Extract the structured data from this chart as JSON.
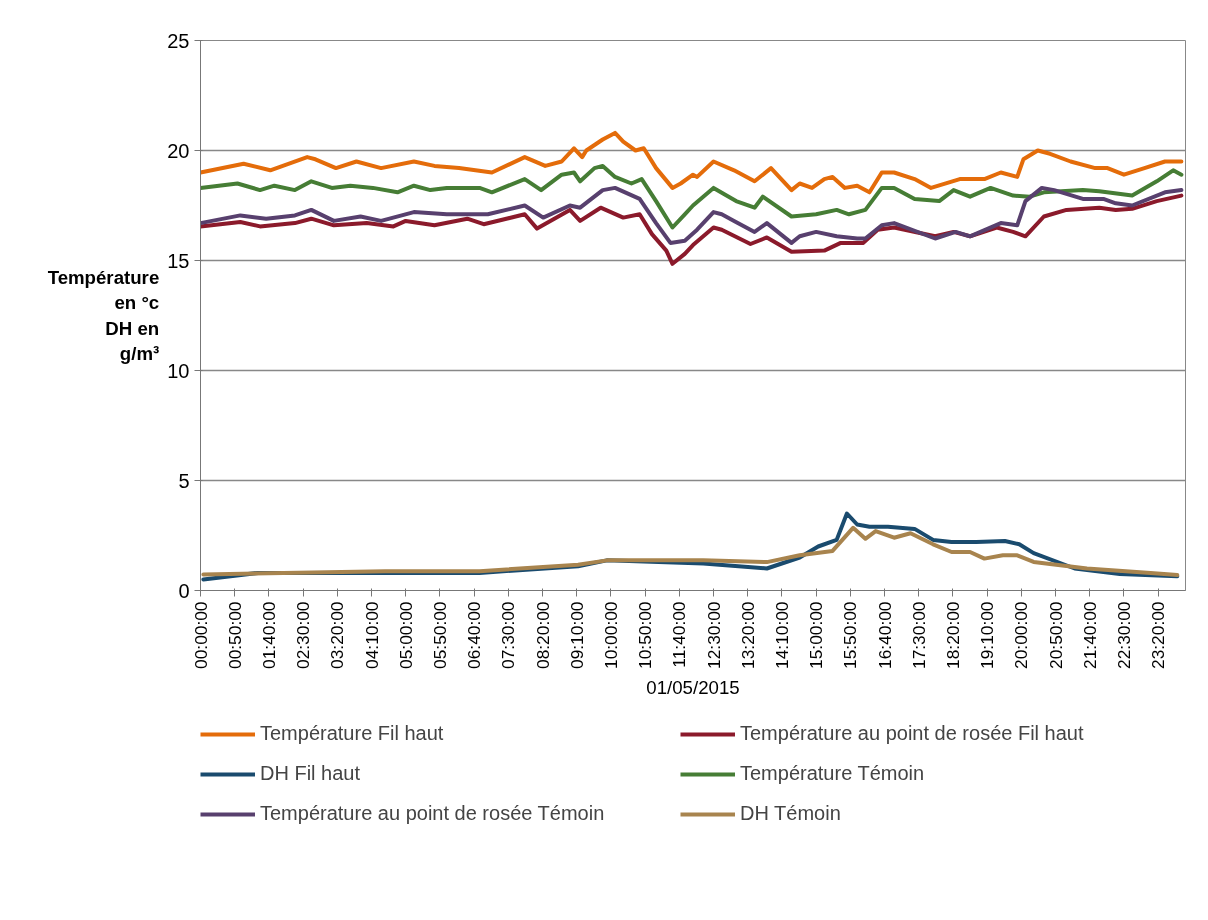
{
  "chart_data": {
    "type": "line",
    "xlabel": "01/05/2015",
    "ylabel": "Température\nen °c\nDH en\ng/m³",
    "xlim": [
      0,
      24
    ],
    "ylim": [
      0,
      25
    ],
    "yticks": [
      0,
      5,
      10,
      15,
      20,
      25
    ],
    "xticks": [
      {
        "value": 0,
        "label": "00:00:00"
      },
      {
        "value": 0.8333,
        "label": "00:50:00"
      },
      {
        "value": 1.6667,
        "label": "01:40:00"
      },
      {
        "value": 2.5,
        "label": "02:30:00"
      },
      {
        "value": 3.3333,
        "label": "03:20:00"
      },
      {
        "value": 4.1667,
        "label": "04:10:00"
      },
      {
        "value": 5,
        "label": "05:00:00"
      },
      {
        "value": 5.8333,
        "label": "05:50:00"
      },
      {
        "value": 6.6667,
        "label": "06:40:00"
      },
      {
        "value": 7.5,
        "label": "07:30:00"
      },
      {
        "value": 8.3333,
        "label": "08:20:00"
      },
      {
        "value": 9.1667,
        "label": "09:10:00"
      },
      {
        "value": 10,
        "label": "10:00:00"
      },
      {
        "value": 10.8333,
        "label": "10:50:00"
      },
      {
        "value": 11.6667,
        "label": "11:40:00"
      },
      {
        "value": 12.5,
        "label": "12:30:00"
      },
      {
        "value": 13.3333,
        "label": "13:20:00"
      },
      {
        "value": 14.1667,
        "label": "14:10:00"
      },
      {
        "value": 15,
        "label": "15:00:00"
      },
      {
        "value": 15.8333,
        "label": "15:50:00"
      },
      {
        "value": 16.6667,
        "label": "16:40:00"
      },
      {
        "value": 17.5,
        "label": "17:30:00"
      },
      {
        "value": 18.3333,
        "label": "18:20:00"
      },
      {
        "value": 19.1667,
        "label": "19:10:00"
      },
      {
        "value": 20,
        "label": "20:00:00"
      },
      {
        "value": 20.8333,
        "label": "20:50:00"
      },
      {
        "value": 21.6667,
        "label": "21:40:00"
      },
      {
        "value": 22.5,
        "label": "22:30:00"
      },
      {
        "value": 23.3333,
        "label": "23:20:00"
      }
    ],
    "grid": "y",
    "legend": "bottom",
    "marker": "none",
    "line_style": "solid",
    "series": [
      {
        "name": "Température Fil haut",
        "color": "#e46c0a",
        "x": [
          0,
          1.05,
          1.7,
          2.6,
          2.8,
          3.3,
          3.8,
          4.4,
          5.2,
          5.7,
          6.3,
          7.1,
          7.9,
          8.4,
          8.8,
          9.1,
          9.3,
          9.4,
          9.8,
          10.1,
          10.3,
          10.6,
          10.8,
          11.1,
          11.5,
          11.7,
          12.0,
          12.1,
          12.5,
          13.0,
          13.5,
          13.9,
          14.4,
          14.6,
          14.9,
          15.2,
          15.4,
          15.7,
          16.0,
          16.3,
          16.6,
          16.9,
          17.4,
          17.8,
          18.5,
          19.1,
          19.5,
          19.9,
          20.05,
          20.4,
          20.7,
          21.2,
          21.8,
          22.1,
          22.5,
          23.0,
          23.5,
          23.9
        ],
        "values": [
          19.0,
          19.4,
          19.1,
          19.7,
          19.6,
          19.2,
          19.5,
          19.2,
          19.5,
          19.3,
          19.2,
          19.0,
          19.7,
          19.3,
          19.5,
          20.1,
          19.7,
          20.0,
          20.5,
          20.8,
          20.4,
          20.0,
          20.1,
          19.2,
          18.3,
          18.5,
          18.9,
          18.8,
          19.5,
          19.1,
          18.6,
          19.2,
          18.2,
          18.5,
          18.3,
          18.7,
          18.8,
          18.3,
          18.4,
          18.1,
          19.0,
          19.0,
          18.7,
          18.3,
          18.7,
          18.7,
          19.0,
          18.8,
          19.6,
          20.0,
          19.85,
          19.5,
          19.2,
          19.2,
          18.9,
          19.2,
          19.5,
          19.5
        ]
      },
      {
        "name": "Température au point de rosée Fil haut",
        "color": "#8b1a2b",
        "x": [
          0,
          0.97,
          1.45,
          2.3,
          2.7,
          3.25,
          4.05,
          4.7,
          5.0,
          5.7,
          6.5,
          6.9,
          7.9,
          8.2,
          9.0,
          9.25,
          9.75,
          10.3,
          10.7,
          11.0,
          11.35,
          11.5,
          11.8,
          12.0,
          12.5,
          12.7,
          13.4,
          13.8,
          14.4,
          15.2,
          15.6,
          16.15,
          16.5,
          16.9,
          17.9,
          18.35,
          18.75,
          19.4,
          19.8,
          20.1,
          20.55,
          21.1,
          21.9,
          22.3,
          22.7,
          23.3,
          23.9
        ],
        "values": [
          16.55,
          16.75,
          16.55,
          16.7,
          16.9,
          16.6,
          16.7,
          16.55,
          16.8,
          16.6,
          16.9,
          16.65,
          17.1,
          16.45,
          17.3,
          16.8,
          17.4,
          16.95,
          17.1,
          16.2,
          15.45,
          14.85,
          15.3,
          15.7,
          16.5,
          16.4,
          15.75,
          16.05,
          15.4,
          15.45,
          15.8,
          15.8,
          16.4,
          16.5,
          16.1,
          16.3,
          16.1,
          16.5,
          16.3,
          16.1,
          17.0,
          17.3,
          17.4,
          17.3,
          17.35,
          17.7,
          17.95
        ]
      },
      {
        "name": "DH Fil haut",
        "color": "#1a4b6e",
        "x": [
          0.07,
          1.4,
          4.5,
          6.8,
          9.2,
          9.9,
          12.25,
          13.8,
          14.6,
          15.05,
          15.5,
          15.75,
          16.0,
          16.3,
          16.75,
          17.4,
          17.85,
          18.3,
          18.9,
          19.6,
          19.95,
          20.3,
          21.3,
          22.4,
          23.8
        ],
        "values": [
          0.5,
          0.8,
          0.8,
          0.8,
          1.1,
          1.37,
          1.23,
          1.0,
          1.5,
          2.0,
          2.3,
          3.5,
          3.0,
          2.9,
          2.9,
          2.8,
          2.3,
          2.2,
          2.2,
          2.25,
          2.1,
          1.7,
          1.0,
          0.75,
          0.65
        ]
      },
      {
        "name": "Température Témoin",
        "color": "#467d35",
        "x": [
          0,
          0.9,
          1.45,
          1.8,
          2.3,
          2.7,
          3.2,
          3.65,
          4.2,
          4.8,
          5.2,
          5.6,
          6.0,
          6.8,
          7.1,
          7.9,
          8.3,
          8.8,
          9.1,
          9.25,
          9.6,
          9.8,
          10.1,
          10.5,
          10.75,
          11.1,
          11.5,
          11.8,
          12.0,
          12.5,
          13.05,
          13.5,
          13.7,
          14.4,
          15.0,
          15.5,
          15.8,
          16.2,
          16.6,
          16.9,
          17.4,
          18.0,
          18.35,
          18.75,
          19.25,
          19.8,
          20.2,
          20.55,
          21.5,
          21.9,
          22.7,
          23.3,
          23.7,
          23.9
        ],
        "values": [
          18.3,
          18.5,
          18.2,
          18.4,
          18.2,
          18.6,
          18.3,
          18.4,
          18.3,
          18.1,
          18.4,
          18.2,
          18.3,
          18.3,
          18.1,
          18.7,
          18.2,
          18.9,
          19.0,
          18.6,
          19.2,
          19.3,
          18.8,
          18.5,
          18.7,
          17.7,
          16.5,
          17.1,
          17.5,
          18.3,
          17.7,
          17.4,
          17.9,
          17.0,
          17.1,
          17.3,
          17.1,
          17.3,
          18.3,
          18.3,
          17.8,
          17.7,
          18.2,
          17.9,
          18.3,
          17.95,
          17.9,
          18.1,
          18.2,
          18.15,
          17.95,
          18.6,
          19.1,
          18.9
        ]
      },
      {
        "name": "Température au point de rosée Témoin",
        "color": "#58406e",
        "x": [
          0,
          0.97,
          1.6,
          2.3,
          2.7,
          3.25,
          3.9,
          4.4,
          5.2,
          6.0,
          7.0,
          7.9,
          8.35,
          9.0,
          9.25,
          9.8,
          10.1,
          10.7,
          11.1,
          11.45,
          11.8,
          12.1,
          12.5,
          12.7,
          13.0,
          13.5,
          13.8,
          14.4,
          14.6,
          15.0,
          15.5,
          16.0,
          16.2,
          16.6,
          16.9,
          17.9,
          18.4,
          18.75,
          19.5,
          19.9,
          20.1,
          20.5,
          20.8,
          21.5,
          22.0,
          22.3,
          22.7,
          23.5,
          23.9
        ],
        "values": [
          16.7,
          17.05,
          16.9,
          17.05,
          17.3,
          16.8,
          17.0,
          16.8,
          17.2,
          17.1,
          17.1,
          17.5,
          16.95,
          17.5,
          17.4,
          18.2,
          18.3,
          17.8,
          16.7,
          15.8,
          15.9,
          16.4,
          17.2,
          17.1,
          16.8,
          16.3,
          16.7,
          15.8,
          16.1,
          16.3,
          16.1,
          16.0,
          16.0,
          16.6,
          16.7,
          16.0,
          16.3,
          16.1,
          16.7,
          16.6,
          17.7,
          18.3,
          18.2,
          17.8,
          17.8,
          17.6,
          17.5,
          18.1,
          18.2
        ]
      },
      {
        "name": "DH Témoin",
        "color": "#a8844e",
        "x": [
          0.07,
          4.5,
          6.8,
          9.2,
          9.9,
          12.25,
          13.8,
          14.6,
          15.4,
          15.9,
          16.2,
          16.45,
          16.9,
          17.3,
          17.85,
          18.3,
          18.75,
          19.1,
          19.55,
          19.9,
          20.3,
          21.6,
          23.15,
          23.8
        ],
        "values": [
          0.73,
          0.88,
          0.88,
          1.17,
          1.37,
          1.37,
          1.29,
          1.6,
          1.8,
          2.85,
          2.35,
          2.7,
          2.4,
          2.6,
          2.1,
          1.75,
          1.75,
          1.45,
          1.6,
          1.6,
          1.3,
          1.0,
          0.8,
          0.7
        ]
      }
    ]
  }
}
